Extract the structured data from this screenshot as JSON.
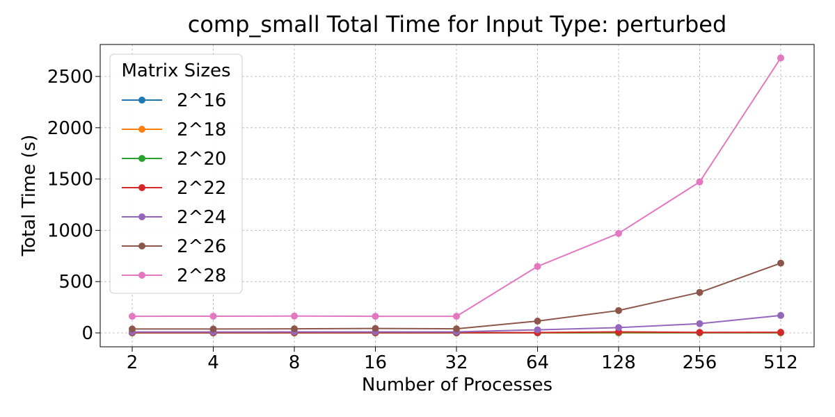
{
  "chart_data": {
    "type": "line",
    "title": "comp_small Total Time for Input Type: perturbed",
    "xlabel": "Number of Processes",
    "ylabel": "Total Time (s)",
    "categories": [
      "2",
      "4",
      "8",
      "16",
      "32",
      "64",
      "128",
      "256",
      "512"
    ],
    "ylim": [
      -135,
      2810
    ],
    "yticks": [
      0,
      500,
      1000,
      1500,
      2000,
      2500
    ],
    "grid": true,
    "legend": {
      "title": "Matrix Sizes",
      "placement": "top-left"
    },
    "series": [
      {
        "name": "2^16",
        "color": "#1f77b4",
        "values": [
          0.4,
          0.4,
          0.4,
          0.4,
          0.4,
          0.5,
          0.6,
          0.8,
          1.0
        ]
      },
      {
        "name": "2^18",
        "color": "#ff7f0e",
        "values": [
          0.6,
          0.6,
          0.6,
          0.6,
          0.6,
          0.8,
          1.2,
          1.8,
          2.0
        ]
      },
      {
        "name": "2^20",
        "color": "#2ca02c",
        "values": [
          1.2,
          1.2,
          1.2,
          1.2,
          1.2,
          1.5,
          4.0,
          3.0,
          3.5
        ]
      },
      {
        "name": "2^22",
        "color": "#d62728",
        "values": [
          2.5,
          2.5,
          2.5,
          2.5,
          2.5,
          3.0,
          10.0,
          5.0,
          6.0
        ]
      },
      {
        "name": "2^24",
        "color": "#9467bd",
        "values": [
          9,
          9,
          10,
          10,
          10,
          30,
          52,
          90,
          170
        ]
      },
      {
        "name": "2^26",
        "color": "#8c564b",
        "values": [
          38,
          38,
          40,
          43,
          40,
          115,
          218,
          395,
          680
        ]
      },
      {
        "name": "2^28",
        "color": "#e377c2",
        "values": [
          162,
          163,
          164,
          162,
          162,
          648,
          970,
          1472,
          2680
        ]
      }
    ]
  }
}
